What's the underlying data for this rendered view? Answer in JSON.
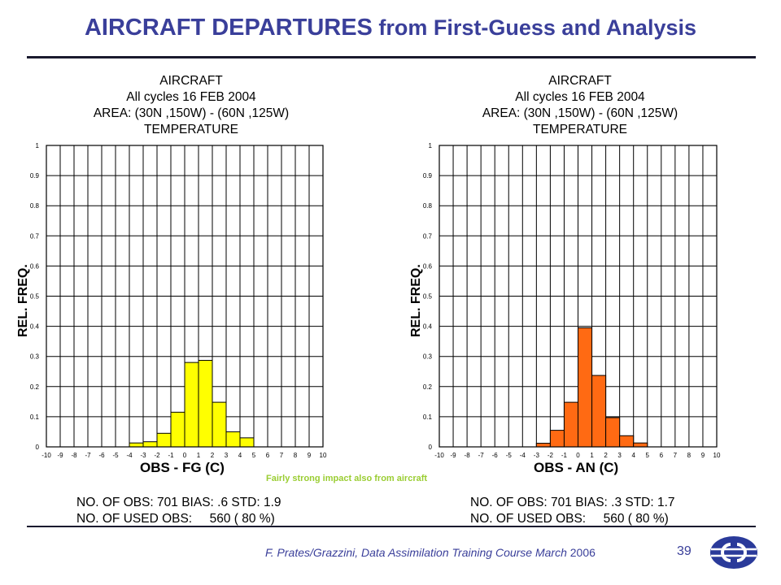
{
  "slide": {
    "title_bold": "AIRCRAFT DEPARTURES",
    "title_rest": " from First-Guess and Analysis",
    "note": "Fairly strong impact also from aircraft",
    "footer_text": "F. Prates/Grazzini,  Data Assimilation Training Course March",
    "footer_year": "2006",
    "page_number": "39"
  },
  "colors": {
    "title": "#3a3f9a",
    "fg_bar": "#ffff00",
    "an_bar": "#ff6a13",
    "note": "#9acd32"
  },
  "chart_data": [
    {
      "type": "bar",
      "title_lines": [
        "AIRCRAFT",
        "All cycles 16 FEB 2004",
        "AREA: (30N ,150W) - (60N ,125W)",
        "TEMPERATURE"
      ],
      "xlabel": "OBS - FG (C)",
      "ylabel": "REL. FREQ.",
      "xlim": [
        -10,
        10
      ],
      "ylim": [
        0,
        1
      ],
      "xticks": [
        "-10",
        "-9",
        "-8",
        "-7",
        "-6",
        "-5",
        "-4",
        "-3",
        "-2",
        "-1",
        "0",
        "1",
        "2",
        "3",
        "4",
        "5",
        "6",
        "7",
        "8",
        "9",
        "10"
      ],
      "yticks": [
        "0",
        "0.1",
        "0.2",
        "0.3",
        "0.4",
        "0.5",
        "0.6",
        "0.7",
        "0.8",
        "0.9",
        "1"
      ],
      "bin_starts": [
        -4,
        -3,
        -2,
        -1,
        0,
        1,
        2,
        3,
        4
      ],
      "values": [
        0.013,
        0.017,
        0.045,
        0.115,
        0.28,
        0.287,
        0.148,
        0.05,
        0.03
      ],
      "bar_color": "#ffff00",
      "grid": true,
      "stats_line1": "NO. OF OBS: 701 BIAS: .6 STD: 1.9",
      "stats_line2": "NO. OF USED OBS:     560 ( 80 %)"
    },
    {
      "type": "bar",
      "title_lines": [
        "AIRCRAFT",
        "All cycles 16 FEB 2004",
        "AREA: (30N ,150W) - (60N ,125W)",
        "TEMPERATURE"
      ],
      "xlabel": "OBS - AN (C)",
      "ylabel": "REL. FREQ.",
      "xlim": [
        -10,
        10
      ],
      "ylim": [
        0,
        1
      ],
      "xticks": [
        "-10",
        "-9",
        "-8",
        "-7",
        "-6",
        "-5",
        "-4",
        "-3",
        "-2",
        "-1",
        "0",
        "1",
        "2",
        "3",
        "4",
        "5",
        "6",
        "7",
        "8",
        "9",
        "10"
      ],
      "yticks": [
        "0",
        "0.1",
        "0.2",
        "0.3",
        "0.4",
        "0.5",
        "0.6",
        "0.7",
        "0.8",
        "0.9",
        "1"
      ],
      "bin_starts": [
        -3,
        -2,
        -1,
        0,
        1,
        2,
        3,
        4
      ],
      "values": [
        0.012,
        0.055,
        0.148,
        0.395,
        0.237,
        0.097,
        0.037,
        0.013
      ],
      "bar_color": "#ff6a13",
      "grid": true,
      "stats_line1": "NO. OF OBS: 701 BIAS: .3 STD: 1.7",
      "stats_line2": "NO. OF USED OBS:     560 ( 80 %)"
    }
  ]
}
